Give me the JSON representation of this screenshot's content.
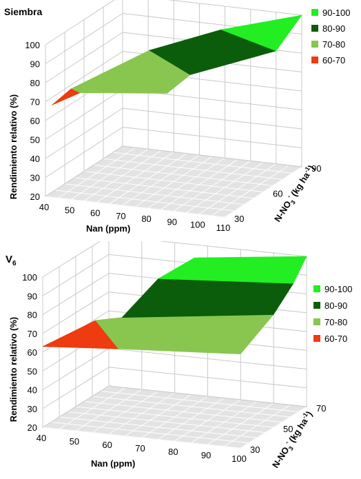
{
  "legend_items": [
    {
      "label": "90-100",
      "color": "#22ee22"
    },
    {
      "label": "80-90",
      "color": "#0b5d0b"
    },
    {
      "label": "70-80",
      "color": "#88c650"
    },
    {
      "label": "60-70",
      "color": "#ee3b0f"
    }
  ],
  "chart_data": [
    {
      "type": "surface3d",
      "title": "Siembra",
      "xlabel": "Nan (ppm)",
      "ylabel_prefix": "N-NO",
      "ylabel_sub": "3",
      "ylabel_sup": "-",
      "ylabel_unit": "(kg ha",
      "ylabel_unit_sup": "-1",
      "ylabel_close": ")",
      "zlabel": "Rendimiento relativo (%)",
      "x_ticks": [
        "40",
        "50",
        "60",
        "70",
        "80",
        "90",
        "100",
        "110"
      ],
      "y_ticks": [
        "30",
        "60",
        "90"
      ],
      "z_ticks": [
        "20",
        "30",
        "40",
        "50",
        "60",
        "70",
        "80",
        "90",
        "100"
      ],
      "xlim": [
        40,
        110
      ],
      "ylim": [
        30,
        90
      ],
      "zlim": [
        20,
        100
      ],
      "legend_position": "right",
      "bands": [
        {
          "band": "60-70",
          "points": [
            [
              40,
              35,
              66
            ],
            [
              46,
              45,
              69
            ],
            [
              40,
              50,
              68
            ]
          ]
        },
        {
          "band": "70-80",
          "points": [
            [
              46,
              45,
              69
            ],
            [
              80,
              45,
              74
            ],
            [
              84,
              55,
              80
            ],
            [
              58,
              75,
              80
            ],
            [
              40,
              50,
              68
            ]
          ]
        },
        {
          "band": "80-90",
          "points": [
            [
              84,
              55,
              80
            ],
            [
              58,
              75,
              80
            ],
            [
              80,
              87,
              89
            ],
            [
              110,
              70,
              90
            ]
          ]
        },
        {
          "band": "90-100",
          "points": [
            [
              80,
              87,
              89
            ],
            [
              110,
              90,
              100
            ],
            [
              110,
              70,
              90
            ]
          ]
        }
      ]
    },
    {
      "type": "surface3d",
      "title_main": "V",
      "title_sub": "6",
      "xlabel": "Nan (ppm)",
      "ylabel_prefix": "N-NO",
      "ylabel_sub": "3",
      "ylabel_sup": "-",
      "ylabel_unit": "(kg ha",
      "ylabel_unit_sup": "-1",
      "ylabel_close": ")",
      "zlabel": "Rendimiento relativo (%)",
      "x_ticks": [
        "40",
        "50",
        "60",
        "70",
        "80",
        "90",
        "100"
      ],
      "y_ticks": [
        "30",
        "50",
        "70"
      ],
      "z_ticks": [
        "20",
        "30",
        "40",
        "50",
        "60",
        "70",
        "80",
        "90",
        "100"
      ],
      "xlim": [
        40,
        100
      ],
      "ylim": [
        30,
        70
      ],
      "zlim": [
        20,
        100
      ],
      "legend_position": "right",
      "bands": [
        {
          "band": "60-70",
          "points": [
            [
              40,
              30,
              63
            ],
            [
              63,
              30,
              66
            ],
            [
              54,
              50,
              70
            ],
            [
              46,
              50,
              67
            ]
          ]
        },
        {
          "band": "70-80",
          "points": [
            [
              63,
              30,
              66
            ],
            [
              100,
              30,
              70
            ],
            [
              100,
              50,
              80
            ],
            [
              54,
              50,
              70
            ],
            [
              46,
              50,
              67
            ]
          ]
        },
        {
          "band": "80-90",
          "points": [
            [
              54,
              50,
              70
            ],
            [
              100,
              50,
              80
            ],
            [
              100,
              62,
              90
            ],
            [
              59,
              62,
              85
            ]
          ]
        },
        {
          "band": "90-100",
          "points": [
            [
              59,
              62,
              85
            ],
            [
              100,
              62,
              90
            ],
            [
              100,
              70,
              100
            ],
            [
              66,
              70,
              93
            ]
          ]
        }
      ]
    }
  ]
}
